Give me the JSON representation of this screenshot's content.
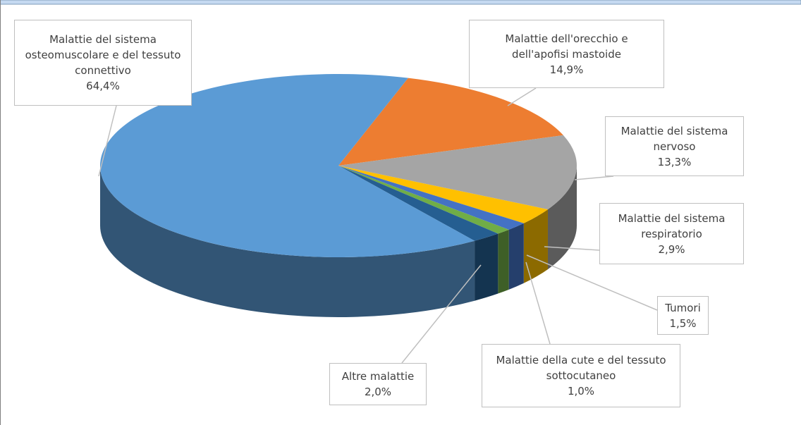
{
  "chart_data": {
    "type": "pie",
    "categories": [
      "Malattie dell'orecchio e dell'apofisi mastoide",
      "Malattie del sistema nervoso",
      "Malattie del sistema respiratorio",
      "Tumori",
      "Malattie della cute e del tessuto sottocutaneo",
      "Altre malattie",
      "Malattie del sistema osteomuscolare e del tessuto connettivo"
    ],
    "values": [
      14.9,
      13.3,
      2.9,
      1.5,
      1.0,
      2.0,
      64.4
    ],
    "value_labels": [
      "14,9%",
      "13,3%",
      "2,9%",
      "1,5%",
      "1,0%",
      "2,0%",
      "64,4%"
    ],
    "colors": [
      "#ED7D31",
      "#A5A5A5",
      "#FFC000",
      "#4472C4",
      "#70AD47",
      "#255E91",
      "#5B9BD5"
    ]
  }
}
